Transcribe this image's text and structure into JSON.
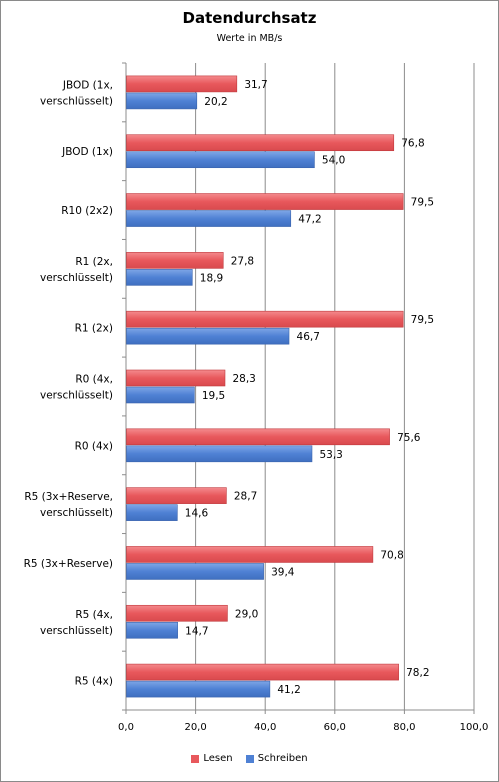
{
  "chart_data": {
    "type": "bar",
    "orientation": "horizontal",
    "title": "Datendurchsatz",
    "subtitle": "Werte in MB/s",
    "categories": [
      [
        "JBOD (1x,",
        "verschlüsselt)"
      ],
      [
        "JBOD (1x)"
      ],
      [
        "R10 (2x2)"
      ],
      [
        "R1 (2x,",
        "verschlüsselt)"
      ],
      [
        "R1 (2x)"
      ],
      [
        "R0 (4x,",
        "verschlüsselt)"
      ],
      [
        "R0 (4x)"
      ],
      [
        "R5 (3x+Reserve,",
        "verschlüsselt)"
      ],
      [
        "R5 (3x+Reserve)"
      ],
      [
        "R5 (4x,",
        "verschlüsselt)"
      ],
      [
        "R5 (4x)"
      ]
    ],
    "series": [
      {
        "name": "Lesen",
        "color": "#e8585c",
        "values": [
          31.7,
          76.8,
          79.5,
          27.8,
          79.5,
          28.3,
          75.6,
          28.7,
          70.8,
          29.0,
          78.2
        ],
        "labels": [
          "31,7",
          "76,8",
          "79,5",
          "27,8",
          "79,5",
          "28,3",
          "75,6",
          "28,7",
          "70,8",
          "29,0",
          "78,2"
        ]
      },
      {
        "name": "Schreiben",
        "color": "#4f81d4",
        "values": [
          20.2,
          54.0,
          47.2,
          18.9,
          46.7,
          19.5,
          53.3,
          14.6,
          39.4,
          14.7,
          41.2
        ],
        "labels": [
          "20,2",
          "54,0",
          "47,2",
          "18,9",
          "46,7",
          "19,5",
          "53,3",
          "14,6",
          "39,4",
          "14,7",
          "41,2"
        ]
      }
    ],
    "xlim": [
      0,
      100
    ],
    "xticks": [
      0,
      20,
      40,
      60,
      80,
      100
    ],
    "xtick_labels": [
      "0,0",
      "20,0",
      "40,0",
      "60,0",
      "80,0",
      "100,0"
    ],
    "grid": "vertical",
    "legend_position": "bottom"
  }
}
